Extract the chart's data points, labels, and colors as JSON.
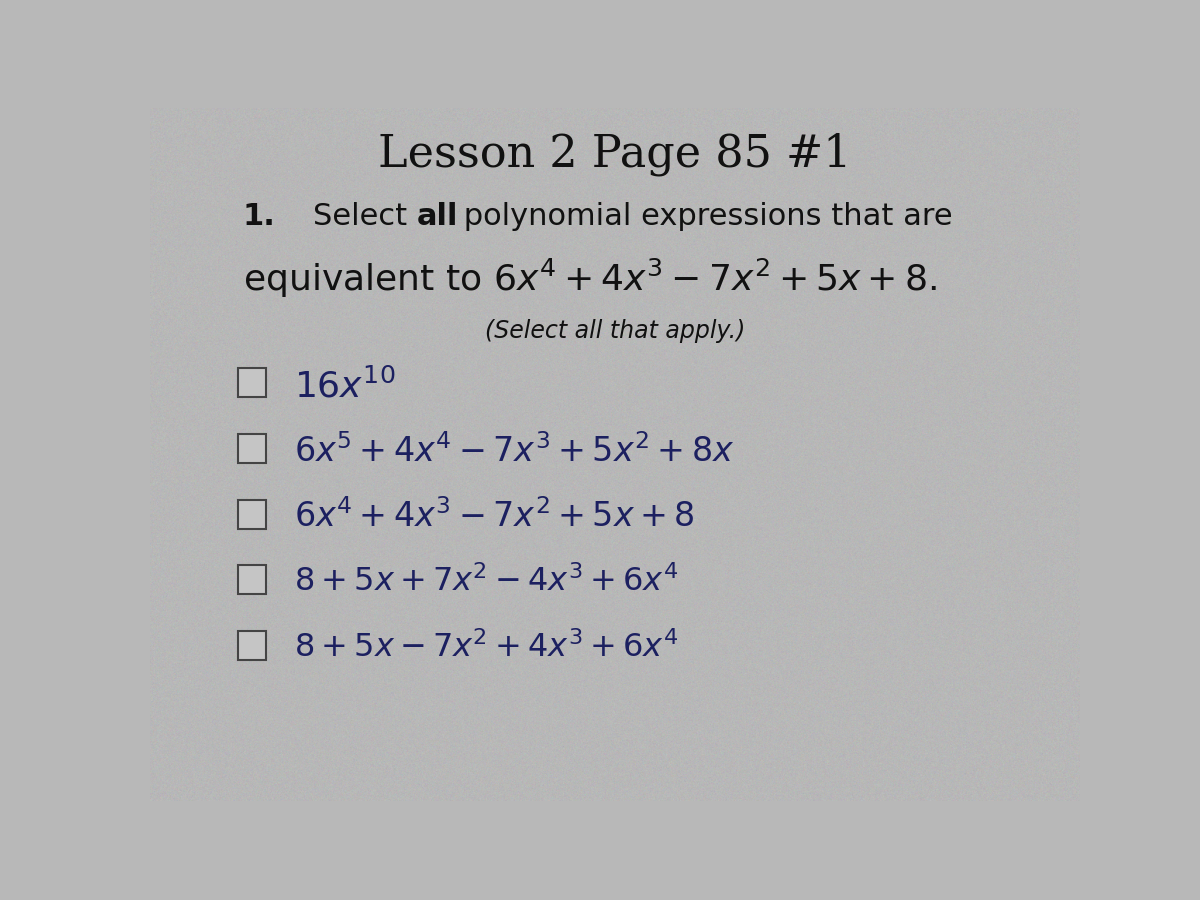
{
  "title": "Lesson 2 Page 85 #1",
  "title_fontsize": 32,
  "background_color": "#b8b8b8",
  "text_color": "#1a1a2e",
  "option_color": "#1a1a6e",
  "question_fontsize": 22,
  "equiv_fontsize": 26,
  "select_note": "(Select all that apply.)",
  "select_note_fontsize": 17,
  "options": [
    "$16x^{10}$",
    "$6x^5 + 4x^4 - 7x^3 + 5x^2 + 8x$",
    "$6x^4 + 4x^3 - 7x^2 + 5x+8$",
    "$8 + 5x + 7x^2 - 4x^3 + 6x^4$",
    "$8 + 5x - 7x^2 + 4x^3 + 6x^4$"
  ],
  "option_fontsizes": [
    26,
    24,
    24,
    23,
    23
  ],
  "figsize": [
    12.0,
    9.0
  ],
  "dpi": 100
}
